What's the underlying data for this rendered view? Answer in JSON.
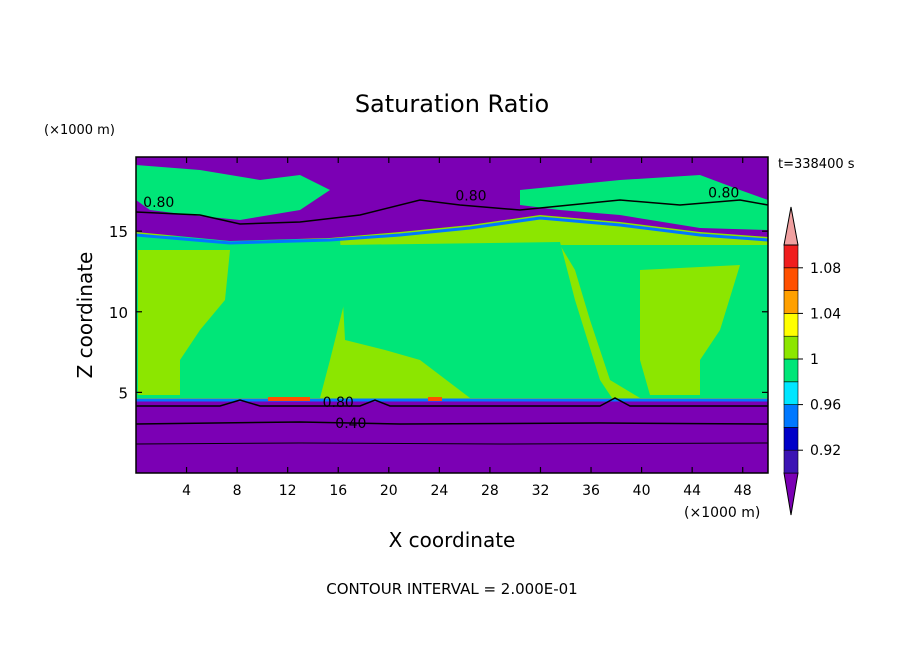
{
  "chart_data": {
    "type": "heatmap",
    "title": "Saturation Ratio",
    "xlabel": "X coordinate",
    "ylabel": "Z coordinate",
    "x_unit": "(×1000 m)",
    "y_unit": "(×1000 m)",
    "time_label": "t=338400 s",
    "footer": "CONTOUR INTERVAL = 2.000E-01",
    "xlim": [
      0,
      50
    ],
    "ylim": [
      0,
      19.6
    ],
    "x_ticks": [
      4,
      8,
      12,
      16,
      20,
      24,
      28,
      32,
      36,
      40,
      44,
      48
    ],
    "y_ticks": [
      5,
      10,
      15
    ],
    "contour_labels": [
      {
        "text": "0.80",
        "x": 1.8,
        "z": 16.8
      },
      {
        "text": "0.80",
        "x": 26.5,
        "z": 17.2
      },
      {
        "text": "0.80",
        "x": 46.5,
        "z": 17.4
      },
      {
        "text": "0.80",
        "x": 16.0,
        "z": 4.4
      },
      {
        "text": "0.40",
        "x": 17.0,
        "z": 3.1
      }
    ],
    "colorbar": {
      "levels": [
        0.92,
        0.94,
        0.96,
        0.98,
        1.0,
        1.02,
        1.04,
        1.06,
        1.08,
        1.1
      ],
      "tick_labels": [
        "0.92",
        "0.96",
        "1",
        "1.04",
        "1.08"
      ],
      "colors": [
        "#7b00b4",
        "#3c14b4",
        "#0000c8",
        "#0078ff",
        "#00e6ff",
        "#00e678",
        "#8ce600",
        "#ffff00",
        "#ffa000",
        "#ff5000",
        "#f01e1e",
        "#f0a0a0"
      ]
    },
    "regions": {
      "lower_boundary_layer_color": "#7b00b4",
      "mid_troposphere_color": "#8ce600",
      "moist_region_color": "#00e678",
      "upper_layer_color": "#7b00b4"
    }
  }
}
